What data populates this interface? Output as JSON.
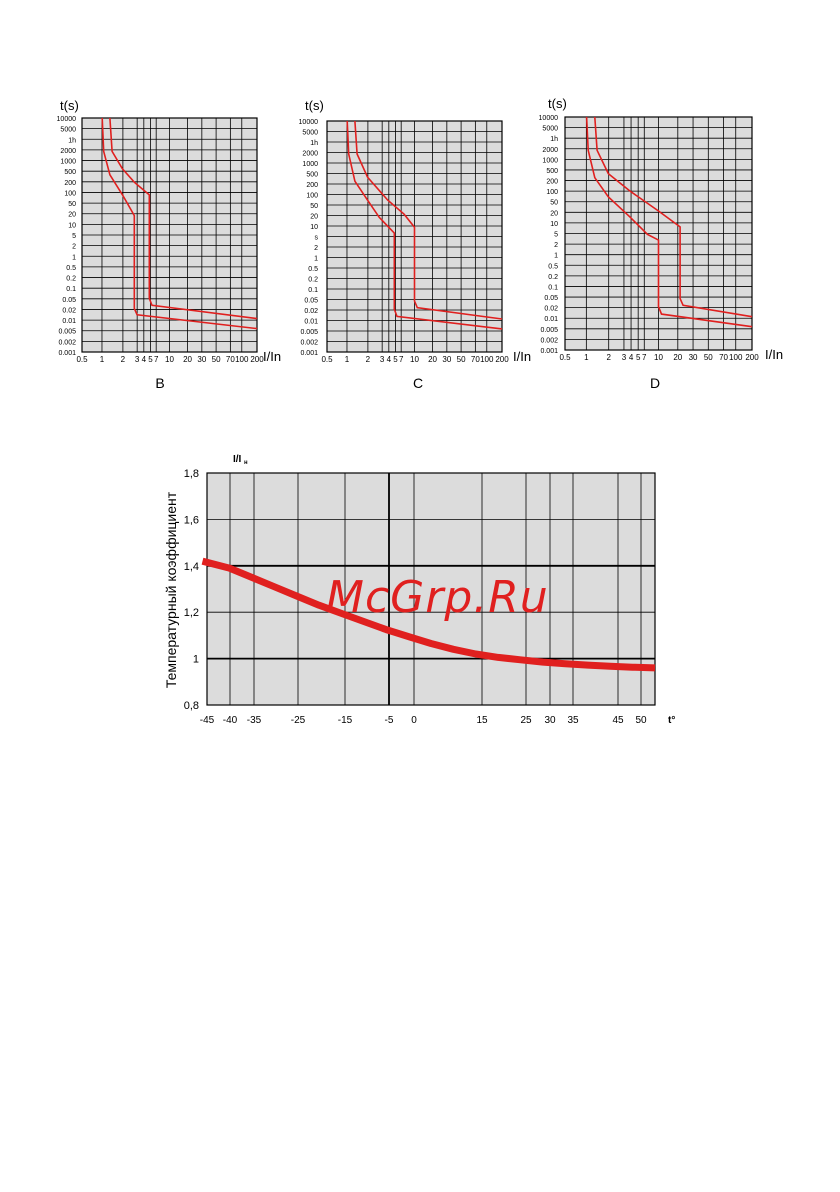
{
  "watermark": "McGrp.Ru",
  "chart_data": [
    {
      "type": "line",
      "label": "B",
      "ylabel": "t(s)",
      "xlabel": "I/In",
      "xscale": "log",
      "yscale": "log",
      "grid": true,
      "x_ticks": [
        "0.5",
        "1",
        "2",
        "3",
        "4",
        "5",
        "7",
        "10",
        "20",
        "30",
        "50",
        "70",
        "100",
        "200"
      ],
      "y_ticks": [
        "10000",
        "5000",
        "1h",
        "2000",
        "1000",
        "500",
        "200",
        "100",
        "50",
        "20",
        "10",
        "5",
        "2",
        "1",
        "0.5",
        "0.2",
        "0.1",
        "0.05",
        "0.02",
        "0.01",
        "0.005",
        "0.002",
        "0.001"
      ],
      "series": [
        {
          "values": [
            [
              1.0,
              10000
            ],
            [
              1.05,
              1000
            ],
            [
              1.3,
              200
            ],
            [
              2,
              50
            ],
            [
              3,
              12
            ],
            [
              3,
              0.02
            ],
            [
              3.3,
              0.013
            ],
            [
              200,
              0.005
            ]
          ]
        },
        {
          "values": [
            [
              1.3,
              10000
            ],
            [
              1.4,
              1000
            ],
            [
              2,
              300
            ],
            [
              3,
              120
            ],
            [
              5,
              50
            ],
            [
              5,
              0.04
            ],
            [
              5.5,
              0.025
            ],
            [
              200,
              0.01
            ]
          ]
        }
      ]
    },
    {
      "type": "line",
      "label": "C",
      "ylabel": "t(s)",
      "xlabel": "I/In",
      "xscale": "log",
      "yscale": "log",
      "grid": true,
      "x_ticks": [
        "0.5",
        "1",
        "2",
        "3",
        "4",
        "5",
        "7",
        "10",
        "20",
        "30",
        "50",
        "70",
        "100",
        "200"
      ],
      "y_ticks": [
        "10000",
        "5000",
        "1h",
        "2000",
        "1000",
        "500",
        "200",
        "100",
        "50",
        "20",
        "10",
        "s",
        "2",
        "1",
        "0.5",
        "0.2",
        "0.1",
        "0.05",
        "0.02",
        "0.01",
        "0.005",
        "0.002",
        "0.001"
      ],
      "series": [
        {
          "values": [
            [
              1.0,
              10000
            ],
            [
              1.05,
              1000
            ],
            [
              1.3,
              150
            ],
            [
              2,
              40
            ],
            [
              3,
              12
            ],
            [
              5,
              4
            ],
            [
              5,
              0.02
            ],
            [
              5.5,
              0.012
            ],
            [
              200,
              0.005
            ]
          ]
        },
        {
          "values": [
            [
              1.3,
              10000
            ],
            [
              1.4,
              1000
            ],
            [
              2,
              200
            ],
            [
              4,
              40
            ],
            [
              7,
              15
            ],
            [
              10,
              6
            ],
            [
              10,
              0.035
            ],
            [
              11,
              0.022
            ],
            [
              200,
              0.01
            ]
          ]
        }
      ]
    },
    {
      "type": "line",
      "label": "D",
      "ylabel": "t(s)",
      "xlabel": "I/In",
      "xscale": "log",
      "yscale": "log",
      "grid": true,
      "x_ticks": [
        "0.5",
        "1",
        "2",
        "3",
        "4",
        "5",
        "7",
        "10",
        "20",
        "30",
        "50",
        "70",
        "100",
        "200"
      ],
      "y_ticks": [
        "10000",
        "5000",
        "1h",
        "2000",
        "1000",
        "500",
        "200",
        "100",
        "50",
        "20",
        "10",
        "5",
        "2",
        "1",
        "0.5",
        "0.2",
        "0.1",
        "0.05",
        "0.02",
        "0.01",
        "0.005",
        "0.002",
        "0.001"
      ],
      "series": [
        {
          "values": [
            [
              1.0,
              10000
            ],
            [
              1.05,
              1000
            ],
            [
              1.3,
              150
            ],
            [
              2,
              40
            ],
            [
              4,
              10
            ],
            [
              7,
              3
            ],
            [
              10,
              2
            ],
            [
              10,
              0.02
            ],
            [
              11,
              0.012
            ],
            [
              200,
              0.005
            ]
          ]
        },
        {
          "values": [
            [
              1.3,
              10000
            ],
            [
              1.4,
              1000
            ],
            [
              2,
              200
            ],
            [
              4,
              60
            ],
            [
              10,
              15
            ],
            [
              20,
              5
            ],
            [
              20,
              0.035
            ],
            [
              22,
              0.022
            ],
            [
              200,
              0.01
            ]
          ]
        }
      ]
    },
    {
      "type": "line",
      "ylabel": "Температурный коэффициент",
      "yunit_label": "I/I",
      "yunit_sub": "н",
      "xlabel": "t°",
      "ylim": [
        0.8,
        1.8
      ],
      "xlim": [
        -45,
        55
      ],
      "y_ticks": [
        "0,8",
        "1",
        "1,2",
        "1,4",
        "1,6",
        "1,8"
      ],
      "x_ticks": [
        "-45",
        "-40",
        "-35",
        "-25",
        "-15",
        "-5",
        "0",
        "15",
        "25",
        "30",
        "35",
        "45",
        "50"
      ],
      "grid": true,
      "series": [
        {
          "x": [
            -46,
            -40,
            -35,
            -30,
            -25,
            -20,
            -15,
            -10,
            -5,
            0,
            5,
            10,
            15,
            20,
            25,
            30,
            35,
            40,
            45,
            50,
            55
          ],
          "values": [
            1.42,
            1.39,
            1.35,
            1.31,
            1.27,
            1.23,
            1.195,
            1.16,
            1.125,
            1.095,
            1.065,
            1.04,
            1.02,
            1.005,
            0.995,
            0.985,
            0.978,
            0.972,
            0.967,
            0.963,
            0.96
          ]
        }
      ]
    }
  ]
}
